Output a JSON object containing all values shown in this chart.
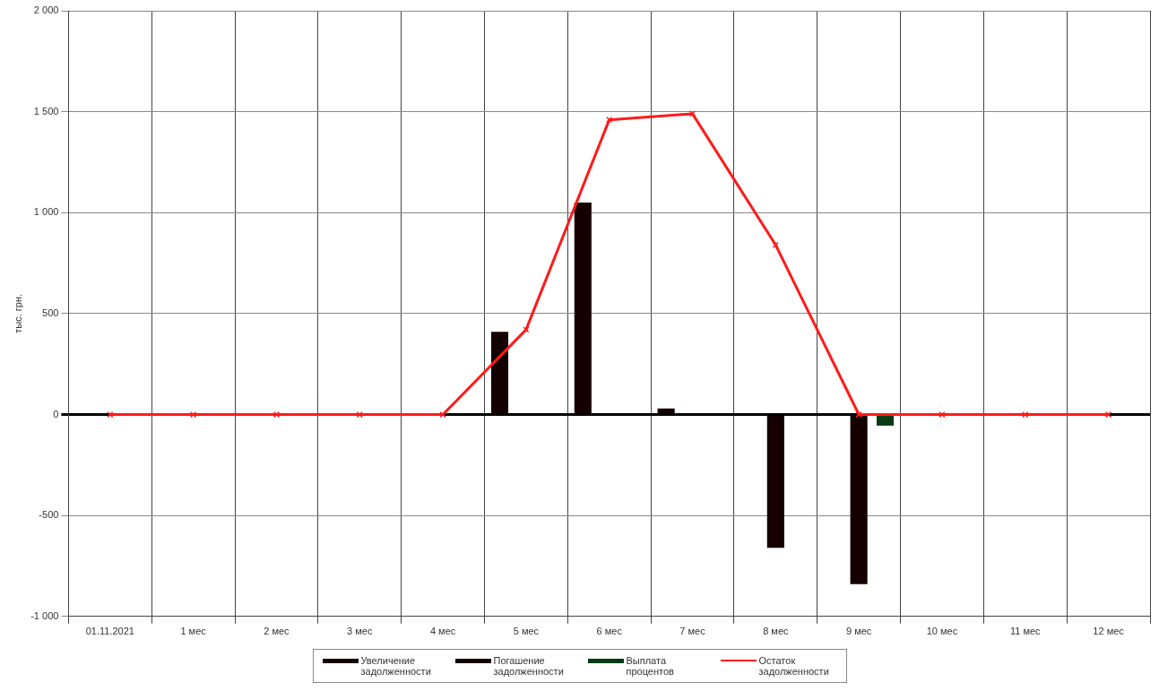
{
  "chart_data": {
    "type": "bar",
    "ylabel": "тыс. грн.",
    "categories": [
      "01.11.2021",
      "1 мес",
      "2 мес",
      "3 мес",
      "4 мес",
      "5 мес",
      "6 мес",
      "7 мес",
      "8 мес",
      "9 мес",
      "10 мес",
      "11 мес",
      "12 мес"
    ],
    "series": [
      {
        "name": "Увеличение задолженности",
        "color": "#140000",
        "values": [
          0,
          0,
          0,
          0,
          0,
          410,
          1050,
          30,
          0,
          0,
          0,
          0,
          0
        ]
      },
      {
        "name": "Погашение задолженности",
        "color": "#140000",
        "values": [
          0,
          0,
          0,
          0,
          0,
          0,
          0,
          0,
          -660,
          -840,
          0,
          0,
          0
        ]
      },
      {
        "name": "Выплата процентов",
        "color": "#0a3a14",
        "values": [
          0,
          0,
          0,
          0,
          0,
          0,
          0,
          0,
          0,
          -55,
          0,
          0,
          0
        ]
      },
      {
        "name": "Остаток задолженности",
        "type": "line",
        "color": "#ff1a1a",
        "marker": "cross",
        "values": [
          0,
          0,
          0,
          0,
          0,
          420,
          1460,
          1490,
          840,
          0,
          0,
          0,
          0
        ]
      }
    ],
    "ylim": [
      -1000,
      2000
    ],
    "yticks": [
      {
        "value": -1000,
        "label": "-1 000"
      },
      -500,
      0,
      500,
      {
        "value": 1000,
        "label": "1 000"
      },
      {
        "value": 1500,
        "label": "1 500"
      },
      {
        "value": 2000,
        "label": "2 000"
      }
    ],
    "grid": true,
    "legend": "bottom"
  }
}
